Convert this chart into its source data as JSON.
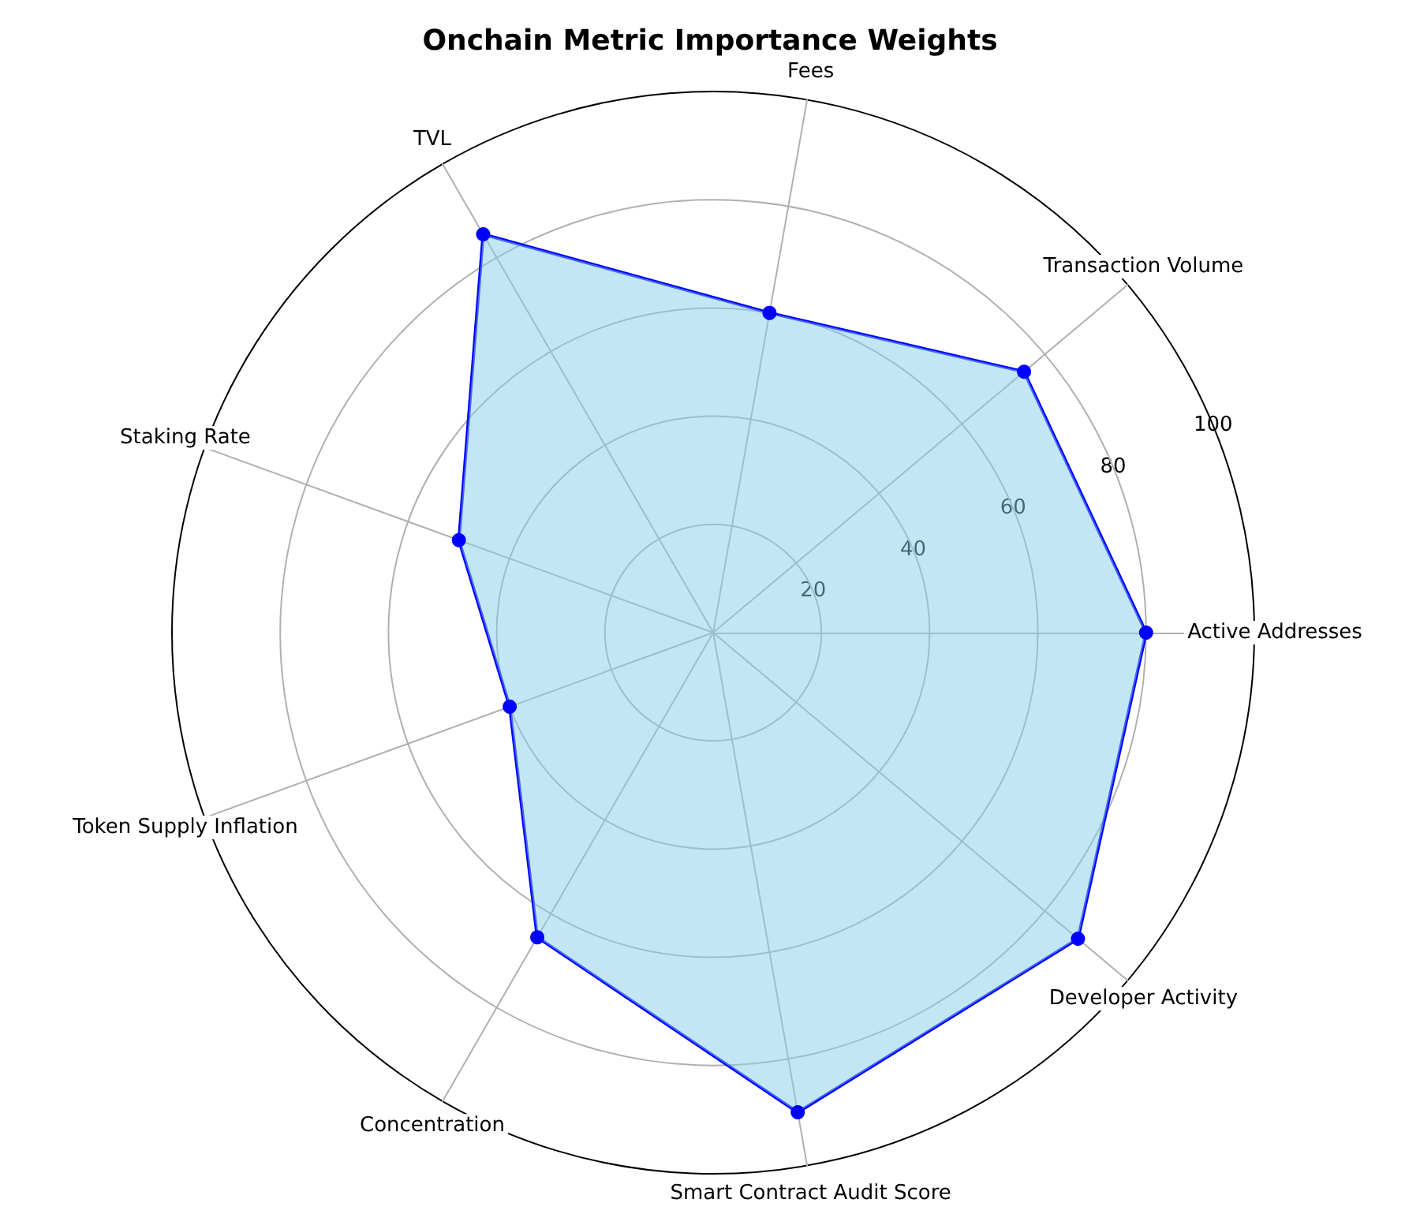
{
  "chart_data": {
    "type": "radar",
    "title": "Onchain Metric Importance Weights",
    "categories": [
      "Fees",
      "Transaction Volume",
      "Active Addresses",
      "Developer Activity",
      "Smart Contract Audit Score",
      "Concentration",
      "Token Supply Inflation",
      "Staking Rate",
      "TVL"
    ],
    "series": [
      {
        "color": "#0000ff",
        "values": [
          60,
          75,
          80,
          88,
          90,
          65,
          40,
          50,
          85
        ]
      }
    ],
    "ylim": [
      0,
      100
    ],
    "yticks": [
      20,
      40,
      60,
      80,
      100
    ],
    "grid": true,
    "marker": "circle",
    "line_style": "solid"
  }
}
